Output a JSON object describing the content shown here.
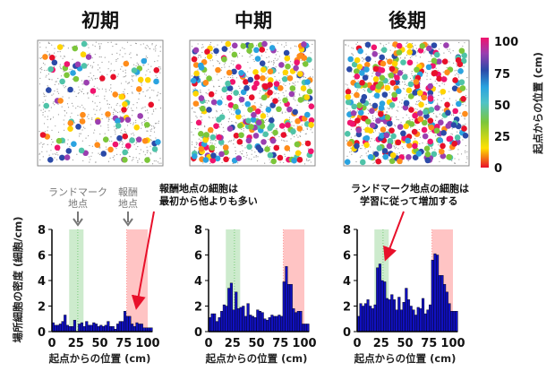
{
  "chart_data": [
    {
      "type": "scatter",
      "title": "初期",
      "kind": "cell-map",
      "color_scale": "position"
    },
    {
      "type": "scatter",
      "title": "中期",
      "kind": "cell-map",
      "color_scale": "position"
    },
    {
      "type": "scatter",
      "title": "後期",
      "kind": "cell-map",
      "color_scale": "position"
    },
    {
      "type": "bar",
      "xlabel": "起点からの位置 (cm)",
      "ylabel": "場所細胞の密度 (細胞/cm)",
      "xlim": [
        0,
        105
      ],
      "ylim": [
        0,
        8
      ],
      "xticks": [
        "0",
        "25",
        "50",
        "75",
        "100"
      ],
      "yticks": [
        "0",
        "2",
        "4",
        "6",
        "8"
      ],
      "bin_width": 2.5,
      "values": [
        0.7,
        0.5,
        0.5,
        0.6,
        0.8,
        1.3,
        0.5,
        0.4,
        0.4,
        0.9,
        0.0,
        0.6,
        0.7,
        0.4,
        0.8,
        0.5,
        0.5,
        0.7,
        0.6,
        0.4,
        0.5,
        0.4,
        0.5,
        0.8,
        0.4,
        0.4,
        0.2,
        0.6,
        0.8,
        0.8,
        1.6,
        1.2,
        1.2,
        0.6,
        0.4,
        0.7,
        0.6,
        0.6,
        0.3,
        0.3,
        0.3,
        0.3
      ]
    },
    {
      "type": "bar",
      "xlabel": "起点からの位置 (cm)",
      "xlim": [
        0,
        105
      ],
      "ylim": [
        0,
        8
      ],
      "xticks": [
        "0",
        "25",
        "50",
        "75",
        "100"
      ],
      "yticks": [
        "0",
        "2",
        "4",
        "6",
        "8"
      ],
      "bin_width": 2.5,
      "values": [
        1.1,
        1.4,
        1.4,
        0.8,
        1.1,
        1.6,
        2.1,
        2.0,
        3.4,
        3.8,
        1.7,
        3.1,
        1.8,
        1.9,
        2.0,
        1.2,
        2.2,
        1.3,
        1.2,
        1.1,
        1.7,
        1.6,
        1.5,
        1.0,
        0.9,
        1.1,
        1.3,
        1.2,
        1.2,
        1.3,
        1.2,
        3.9,
        5.1,
        3.7,
        3.7,
        1.8,
        1.5,
        1.6,
        1.6,
        0.6,
        0.6,
        0.6
      ]
    },
    {
      "type": "bar",
      "xlabel": "起点からの位置 (cm)",
      "xlim": [
        0,
        105
      ],
      "ylim": [
        0,
        8
      ],
      "xticks": [
        "0",
        "25",
        "50",
        "75",
        "100"
      ],
      "yticks": [
        "0",
        "2",
        "4",
        "6",
        "8"
      ],
      "bin_width": 2.5,
      "values": [
        1.2,
        2.2,
        2.0,
        2.2,
        2.5,
        2.0,
        1.8,
        2.1,
        5.0,
        5.3,
        4.0,
        3.9,
        2.6,
        2.5,
        2.9,
        2.5,
        1.7,
        2.7,
        1.7,
        2.3,
        3.4,
        2.5,
        2.0,
        1.7,
        1.3,
        1.9,
        1.8,
        2.6,
        1.4,
        1.7,
        2.1,
        5.6,
        6.1,
        6.0,
        4.4,
        4.4,
        3.7,
        3.1,
        2.2,
        1.6,
        1.6,
        1.6
      ]
    }
  ],
  "colorbar": {
    "label": "起点からの位置 (cm)",
    "ticks": [
      "0",
      "25",
      "50",
      "75",
      "100"
    ]
  },
  "zones": {
    "landmark": [
      18,
      33
    ],
    "landmark_line": 27,
    "reward": [
      78,
      100
    ],
    "landmark_color": "#cdebcd",
    "reward_color": "#ffc4c4"
  },
  "annotations": {
    "landmark_label": [
      "ランドマーク",
      "地点"
    ],
    "reward_label": [
      "報酬",
      "地点"
    ],
    "early_note": [
      "報酬地点の細胞は",
      "最初から他よりも多い"
    ],
    "late_note": [
      "ランドマーク地点の細胞は",
      "学習に従って増加する"
    ]
  },
  "colors": {
    "bar": "#1010c0",
    "arrow": "#e8102a",
    "guide_arrow": "#777777"
  }
}
